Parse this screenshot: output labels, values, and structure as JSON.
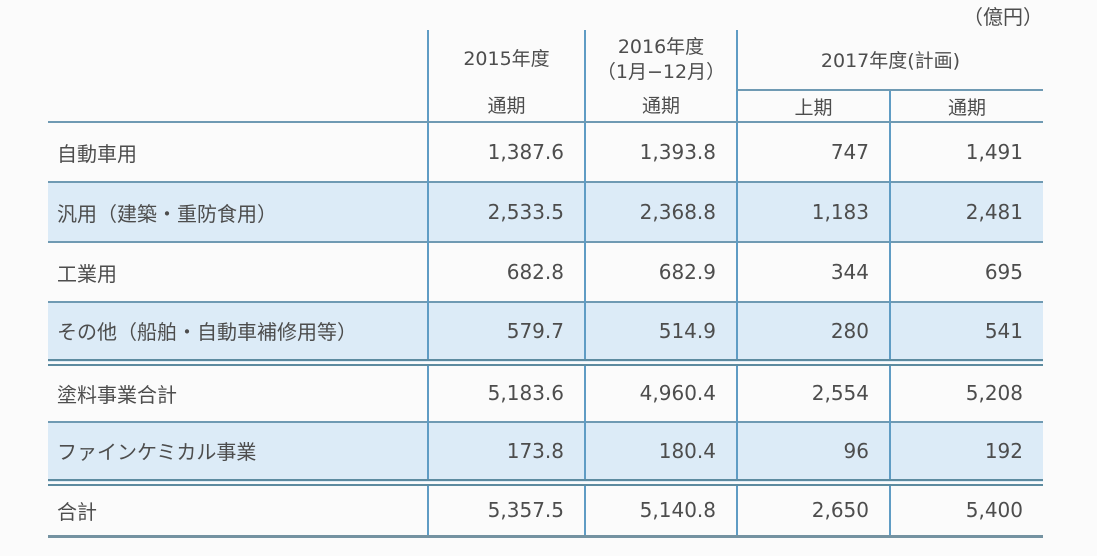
{
  "colors": {
    "rule_single": "#6f9ab3",
    "rule_vertical": "#5f9cc4",
    "rule_double": "#5d8ba0",
    "rule_bottom": "#7492a1",
    "row_alt_fill": "#dcebf7",
    "text": "#4d4d4d",
    "background": "#fbfbfb"
  },
  "chart_data": {
    "type": "table",
    "unit_label": "（億円）",
    "header": {
      "col_2015": {
        "title": "2015年度",
        "period": "通期"
      },
      "col_2016": {
        "title": "2016年度",
        "subtitle": "（1月−12月）",
        "period": "通期"
      },
      "col_2017": {
        "title": "2017年度(計画)",
        "first_half": "上期",
        "full_year": "通期"
      }
    },
    "columns_flat": [
      "2015年度 通期",
      "2016年度（1月−12月） 通期",
      "2017年度(計画) 上期",
      "2017年度(計画) 通期"
    ],
    "rows": [
      {
        "label": "自動車用",
        "values": [
          "1,387.6",
          "1,393.8",
          "747",
          "1,491"
        ]
      },
      {
        "label": "汎用（建築・重防食用）",
        "values": [
          "2,533.5",
          "2,368.8",
          "1,183",
          "2,481"
        ]
      },
      {
        "label": "工業用",
        "values": [
          "682.8",
          "682.9",
          "344",
          "695"
        ]
      },
      {
        "label": "その他（船舶・自動車補修用等）",
        "values": [
          "579.7",
          "514.9",
          "280",
          "541"
        ]
      },
      {
        "label": "塗料事業合計",
        "values": [
          "5,183.6",
          "4,960.4",
          "2,554",
          "5,208"
        ]
      },
      {
        "label": "ファインケミカル事業",
        "values": [
          "173.8",
          "180.4",
          "96",
          "192"
        ]
      },
      {
        "label": "合計",
        "values": [
          "5,357.5",
          "5,140.8",
          "2,650",
          "5,400"
        ]
      }
    ]
  }
}
